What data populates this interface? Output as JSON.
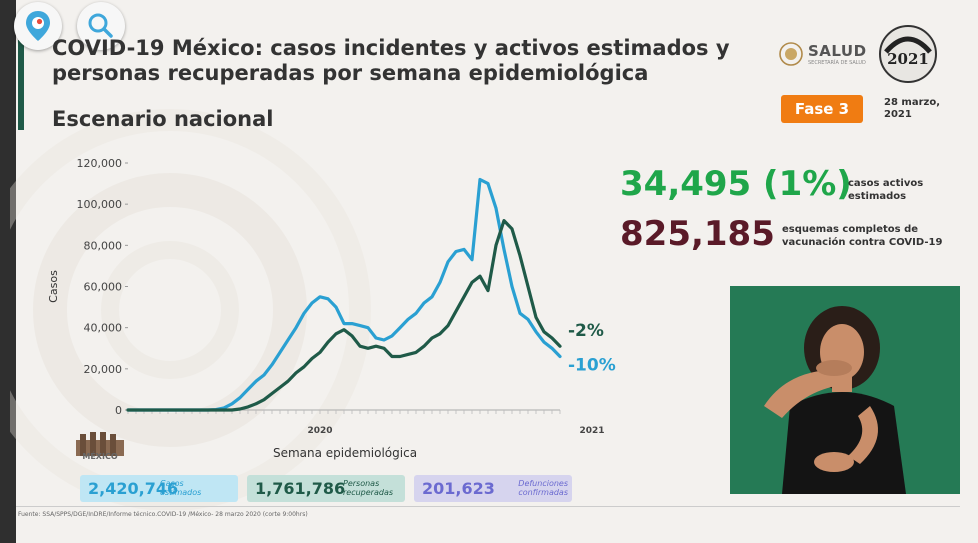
{
  "title_line1": "COVID-19 México: casos incidentes y activos estimados y",
  "title_line2": "personas recuperadas por semana epidemiológica",
  "subtitle": "Escenario nacional",
  "salud_logo": {
    "text": "SALUD",
    "sub": "SECRETARÍA DE SALUD"
  },
  "phase_badge": "Fase 3",
  "date_line1": "28 marzo,",
  "date_line2": "2021",
  "active": {
    "value": "34,495 (1%)",
    "label_line1": "casos activos",
    "label_line2": "estimados"
  },
  "vaccination": {
    "value": "825,185",
    "label_line1": "esquemas completos de",
    "label_line2": "vacunación contra COVID-19"
  },
  "toolbar": {
    "periscope_icon": "periscope-icon",
    "search_icon": "search-icon"
  },
  "stats": {
    "cases": {
      "value": "2,420,746",
      "label_line1": "Casos",
      "label_line2": "estimados"
    },
    "recovered": {
      "value": "1,761,786",
      "label_line1": "Personas",
      "label_line2": "recuperadas"
    },
    "deaths": {
      "value": "201,623",
      "label_line1": "Defunciones",
      "label_line2": "confirmadas"
    }
  },
  "gob_logo_text": "MÉXICO",
  "source": "Fuente: SSA/SPPS/DGE/InDRE/Informe técnico.COVID-19 /México- 28 marzo 2020 (corte 9:00hrs)",
  "colors": {
    "incident": "#2aa0d2",
    "active": "#1f5a48",
    "pct_active": "#1f5a48",
    "pct_incident": "#2aa0d2"
  },
  "chart_data": {
    "type": "line",
    "xlabel": "Semana epidemiológica",
    "ylabel": "Casos",
    "ylim": [
      0,
      120000
    ],
    "yticks": [
      0,
      20000,
      40000,
      60000,
      80000,
      100000,
      120000
    ],
    "ytick_labels": [
      "0",
      "20,000",
      "40,000",
      "60,000",
      "80,000",
      "100,000",
      "120,000"
    ],
    "year_labels": [
      {
        "label": "2020",
        "week_index": 24
      },
      {
        "label": "2021",
        "week_index": 58
      }
    ],
    "pct_labels": [
      {
        "label": "-2%",
        "series": "Activos"
      },
      {
        "label": "-10%",
        "series": "Incidentes"
      }
    ],
    "series": [
      {
        "name": "Incidentes",
        "values": [
          0,
          0,
          0,
          0,
          0,
          0,
          0,
          0,
          0,
          0,
          0,
          200,
          1000,
          3000,
          6000,
          10000,
          14000,
          17000,
          22000,
          28000,
          34000,
          40000,
          47000,
          52000,
          55000,
          54000,
          50000,
          42000,
          42000,
          41000,
          40000,
          35000,
          34000,
          36000,
          40000,
          44000,
          47000,
          52000,
          55000,
          62000,
          72000,
          77000,
          78000,
          73000,
          112000,
          110000,
          98000,
          78000,
          60000,
          47000,
          44000,
          38000,
          33000,
          30000,
          26000
        ]
      },
      {
        "name": "Activos",
        "values": [
          0,
          0,
          0,
          0,
          0,
          0,
          0,
          0,
          0,
          0,
          0,
          0,
          0,
          0,
          500,
          1500,
          3000,
          5000,
          8000,
          11000,
          14000,
          18000,
          21000,
          25000,
          28000,
          33000,
          37000,
          39000,
          36000,
          31000,
          30000,
          31000,
          30000,
          26000,
          26000,
          27000,
          28000,
          31000,
          35000,
          37000,
          41000,
          48000,
          55000,
          62000,
          65000,
          58000,
          80000,
          92000,
          88000,
          75000,
          60000,
          45000,
          38000,
          35000,
          31000
        ]
      }
    ]
  }
}
